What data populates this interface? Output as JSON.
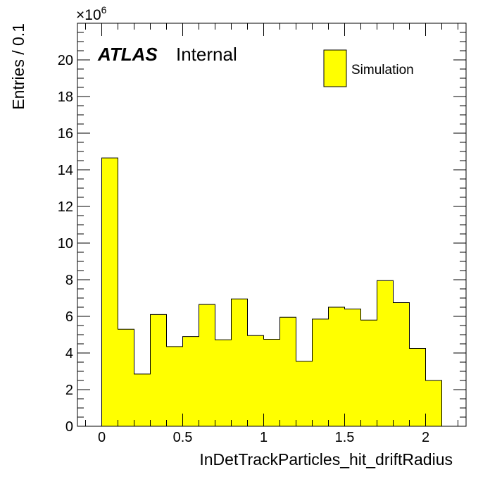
{
  "chart_data": {
    "type": "bar",
    "style": "histogram",
    "x_bin_edges": [
      0.0,
      0.1,
      0.2,
      0.3,
      0.4,
      0.5,
      0.6,
      0.7,
      0.8,
      0.9,
      1.0,
      1.1,
      1.2,
      1.3,
      1.4,
      1.5,
      1.6,
      1.7,
      1.8,
      1.9,
      2.0,
      2.1
    ],
    "values": [
      14.65,
      5.3,
      2.85,
      6.1,
      4.35,
      4.9,
      6.65,
      4.72,
      6.95,
      4.95,
      4.75,
      5.95,
      3.55,
      5.85,
      6.5,
      6.4,
      5.8,
      7.95,
      6.75,
      4.25,
      2.5
    ],
    "xlabel": "InDetTrackParticles_hit_driftRadius",
    "ylabel": "Entries / 0.1",
    "xlim": [
      -0.15,
      2.25
    ],
    "ylim": [
      0,
      22
    ],
    "x_ticks": [
      "0",
      "0.5",
      "1",
      "1.5",
      "2"
    ],
    "x_tick_values": [
      0,
      0.5,
      1,
      1.5,
      2
    ],
    "y_ticks": [
      "0",
      "2",
      "4",
      "6",
      "8",
      "10",
      "12",
      "14",
      "16",
      "18",
      "20"
    ],
    "y_tick_values": [
      0,
      2,
      4,
      6,
      8,
      10,
      12,
      14,
      16,
      18,
      20
    ],
    "y_multiplier_base": "×10",
    "y_multiplier_exponent": "6",
    "legend": [
      {
        "name": "Simulation",
        "color": "#ffff00"
      }
    ],
    "legend_position": "top-right",
    "annotation": {
      "experiment": "ATLAS",
      "status": "Internal"
    },
    "fill_color": "#ffff00",
    "line_color": "#000000",
    "grid": false
  }
}
